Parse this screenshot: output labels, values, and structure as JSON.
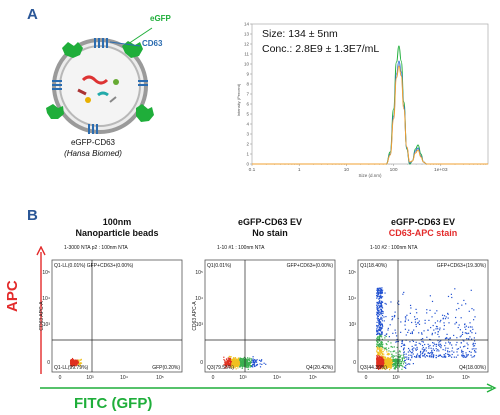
{
  "panel_a": {
    "letter": "A",
    "diagram": {
      "label_egfp": "eGFP",
      "label_cd63": "CD63",
      "caption_line1": "eGFP-CD63",
      "caption_line2": "(Hansa Biomed)",
      "colors": {
        "egfp": "#1fae3a",
        "cd63": "#2b6cb0",
        "membrane": "#9a9a9a"
      },
      "icons": [
        "vesicle-icon",
        "egfp-protein-icon",
        "cd63-tetraspanin-icon"
      ]
    },
    "nta": {
      "size_text": "Size: 134 ± 5nm",
      "conc_text": "Conc.: 2.8E9 ± 1.3E7/mL"
    }
  },
  "panel_b": {
    "letter": "B",
    "y_axis_title": "APC",
    "x_axis_title": "FITC (GFP)",
    "plots": [
      {
        "title_line1": "100nm",
        "title_line2": "Nanoparticle beads",
        "title_line2_color": "#111111",
        "sample_label": "1-3000 NTA p2 : 100nm NTA",
        "q1_label": "Q1-LL(0.01%) GFP+CD63+(0.00%)",
        "q2_label": "",
        "q3_label": "Q1-LL(99.79%)",
        "q4_label": "GFP(0.20%)",
        "xlabel": "eGFP FITC-A",
        "ylabel": "CD63 APC-A"
      },
      {
        "title_line1": "eGFP-CD63 EV",
        "title_line2": "No stain",
        "title_line2_color": "#111111",
        "sample_label": "1-10 #1 : 100nm NTA",
        "q1_label": "Q1(0.01%)",
        "q2_label": "GFP+CD63+(0.00%)",
        "q3_label": "Q3(79.56%)",
        "q4_label": "Q4(20.42%)",
        "xlabel": "eGFP FITC-A",
        "ylabel": "CD63 APC-A"
      },
      {
        "title_line1": "eGFP-CD63 EV",
        "title_line2": "CD63-APC stain",
        "title_line2_color": "#e32b2b",
        "sample_label": "1-10 #2 : 100nm NTA",
        "q1_label": "Q1(18.40%)",
        "q2_label": "GFP+CD63+(19.30%)",
        "q3_label": "Q3(44.30%)",
        "q4_label": "Q4(18.00%)",
        "xlabel": "eGFP FITC-A",
        "ylabel": ""
      }
    ],
    "axis_ticks": {
      "y": [
        "10⁵",
        "10⁴",
        "10³",
        "0"
      ],
      "x": [
        "0",
        "10³",
        "10⁴",
        "10⁵"
      ]
    },
    "colors": {
      "apc": "#e32b2b",
      "fitc": "#1fae3a"
    }
  },
  "chart_data": {
    "type": "line",
    "title": "",
    "xlabel": "Size (d.nm)",
    "ylabel": "Intensity (Percent)",
    "x_scale": "log",
    "xlim": [
      0.1,
      10000
    ],
    "ylim": [
      0,
      14
    ],
    "x_ticks": [
      "0.1",
      "1",
      "10",
      "100",
      "1e+03"
    ],
    "y_ticks": [
      "0",
      "1",
      "2",
      "3",
      "4",
      "5",
      "6",
      "7",
      "8",
      "9",
      "10",
      "11",
      "12",
      "13",
      "14"
    ],
    "grid": false,
    "legend": "none",
    "series": [
      {
        "color": "#1fae3a",
        "x": [
          70,
          85,
          100,
          115,
          130,
          145,
          165,
          190,
          220,
          250,
          290,
          330,
          380,
          430,
          500
        ],
        "y": [
          0,
          1.2,
          5.5,
          10.2,
          11.8,
          10.3,
          6.2,
          1.5,
          0,
          0.3,
          1.5,
          1.9,
          1.0,
          0.2,
          0
        ]
      },
      {
        "color": "#2f6fd6",
        "x": [
          70,
          85,
          100,
          115,
          130,
          145,
          165,
          190,
          220,
          250,
          290,
          330,
          380,
          430,
          500
        ],
        "y": [
          0,
          1.0,
          4.8,
          9.0,
          10.3,
          9.2,
          5.8,
          1.6,
          0.1,
          0.3,
          1.3,
          1.6,
          0.8,
          0.2,
          0
        ]
      },
      {
        "color": "#f0a030",
        "x": [
          70,
          85,
          100,
          115,
          130,
          145,
          165,
          190,
          220,
          250,
          290,
          330,
          380,
          430,
          500
        ],
        "y": [
          0,
          0.9,
          4.5,
          8.6,
          9.8,
          8.8,
          5.5,
          1.7,
          0.2,
          0.3,
          1.1,
          1.4,
          0.7,
          0.2,
          0
        ]
      }
    ]
  }
}
